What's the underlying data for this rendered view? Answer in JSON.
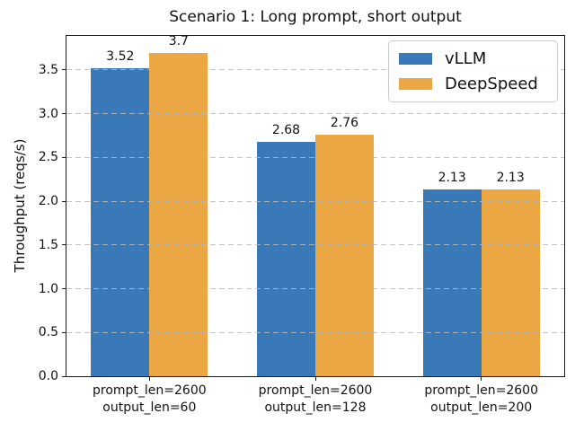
{
  "chart_data": {
    "type": "bar",
    "title": "Scenario 1: Long prompt, short output",
    "xlabel": "",
    "ylabel": "Throughput (reqs/s)",
    "categories": [
      "prompt_len=2600\noutput_len=60",
      "prompt_len=2600\noutput_len=128",
      "prompt_len=2600\noutput_len=200"
    ],
    "series": [
      {
        "name": "vLLM",
        "color": "#3a79b7",
        "values": [
          3.52,
          2.68,
          2.13
        ]
      },
      {
        "name": "DeepSpeed",
        "color": "#eaa744",
        "values": [
          3.7,
          2.76,
          2.13
        ]
      }
    ],
    "value_labels": [
      [
        "3.52",
        "2.68",
        "2.13"
      ],
      [
        "3.7",
        "2.76",
        "2.13"
      ]
    ],
    "yticks": [
      0.0,
      0.5,
      1.0,
      1.5,
      2.0,
      2.5,
      3.0,
      3.5
    ],
    "ylim": [
      0,
      3.89
    ],
    "grid": "horizontal, dashed, behind nothing (drawn over bars)",
    "grid_color": "#b9b9b9",
    "legend_position": "upper right"
  }
}
